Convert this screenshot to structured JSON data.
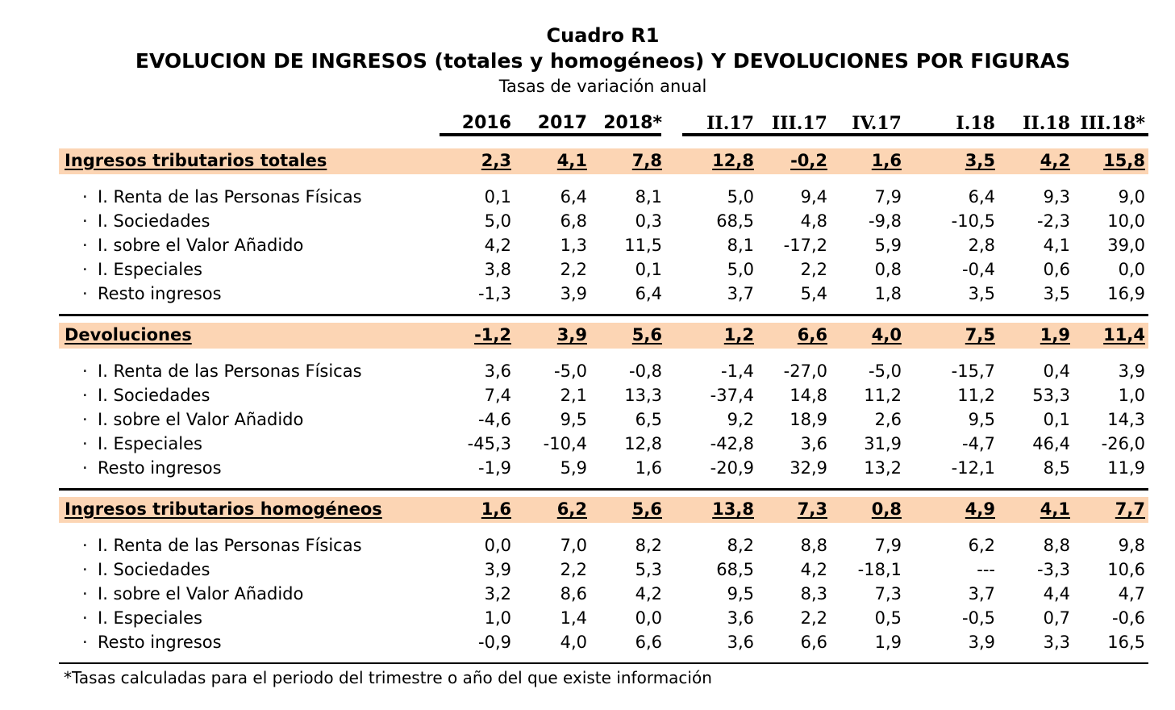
{
  "header": {
    "title": "Cuadro R1",
    "subtitle": "EVOLUCION DE INGRESOS (totales y homogéneos) Y DEVOLUCIONES POR FIGURAS",
    "caption": "Tasas de variación anual"
  },
  "columns": [
    "2016",
    "2017",
    "2018*",
    "II.17",
    "III.17",
    "IV.17",
    "I.18",
    "II.18",
    "III.18*"
  ],
  "colors": {
    "band": "#fcd5b4"
  },
  "sections": [
    {
      "label": "Ingresos tributarios totales",
      "values": [
        "2,3",
        "4,1",
        "7,8",
        "12,8",
        "-0,2",
        "1,6",
        "3,5",
        "4,2",
        "15,8"
      ],
      "rows": [
        {
          "label": "I. Renta de las Personas Físicas",
          "values": [
            "0,1",
            "6,4",
            "8,1",
            "5,0",
            "9,4",
            "7,9",
            "6,4",
            "9,3",
            "9,0"
          ]
        },
        {
          "label": "I. Sociedades",
          "values": [
            "5,0",
            "6,8",
            "0,3",
            "68,5",
            "4,8",
            "-9,8",
            "-10,5",
            "-2,3",
            "10,0"
          ]
        },
        {
          "label": "I. sobre el Valor Añadido",
          "values": [
            "4,2",
            "1,3",
            "11,5",
            "8,1",
            "-17,2",
            "5,9",
            "2,8",
            "4,1",
            "39,0"
          ]
        },
        {
          "label": "I. Especiales",
          "values": [
            "3,8",
            "2,2",
            "0,1",
            "5,0",
            "2,2",
            "0,8",
            "-0,4",
            "0,6",
            "0,0"
          ]
        },
        {
          "label": "Resto ingresos",
          "values": [
            "-1,3",
            "3,9",
            "6,4",
            "3,7",
            "5,4",
            "1,8",
            "3,5",
            "3,5",
            "16,9"
          ]
        }
      ]
    },
    {
      "label": "Devoluciones",
      "values": [
        "-1,2",
        "3,9",
        "5,6",
        "1,2",
        "6,6",
        "4,0",
        "7,5",
        "1,9",
        "11,4"
      ],
      "rows": [
        {
          "label": "I. Renta de las Personas Físicas",
          "values": [
            "3,6",
            "-5,0",
            "-0,8",
            "-1,4",
            "-27,0",
            "-5,0",
            "-15,7",
            "0,4",
            "3,9"
          ]
        },
        {
          "label": "I. Sociedades",
          "values": [
            "7,4",
            "2,1",
            "13,3",
            "-37,4",
            "14,8",
            "11,2",
            "11,2",
            "53,3",
            "1,0"
          ]
        },
        {
          "label": "I. sobre el Valor Añadido",
          "values": [
            "-4,6",
            "9,5",
            "6,5",
            "9,2",
            "18,9",
            "2,6",
            "9,5",
            "0,1",
            "14,3"
          ]
        },
        {
          "label": "I. Especiales",
          "values": [
            "-45,3",
            "-10,4",
            "12,8",
            "-42,8",
            "3,6",
            "31,9",
            "-4,7",
            "46,4",
            "-26,0"
          ]
        },
        {
          "label": "Resto ingresos",
          "values": [
            "-1,9",
            "5,9",
            "1,6",
            "-20,9",
            "32,9",
            "13,2",
            "-12,1",
            "8,5",
            "11,9"
          ]
        }
      ]
    },
    {
      "label": "Ingresos tributarios homogéneos",
      "values": [
        "1,6",
        "6,2",
        "5,6",
        "13,8",
        "7,3",
        "0,8",
        "4,9",
        "4,1",
        "7,7"
      ],
      "rows": [
        {
          "label": "I. Renta de las Personas Físicas",
          "values": [
            "0,0",
            "7,0",
            "8,2",
            "8,2",
            "8,8",
            "7,9",
            "6,2",
            "8,8",
            "9,8"
          ]
        },
        {
          "label": "I. Sociedades",
          "values": [
            "3,9",
            "2,2",
            "5,3",
            "68,5",
            "4,2",
            "-18,1",
            "---",
            "-3,3",
            "10,6"
          ]
        },
        {
          "label": "I. sobre el Valor Añadido",
          "values": [
            "3,2",
            "8,6",
            "4,2",
            "9,5",
            "8,3",
            "7,3",
            "3,7",
            "4,4",
            "4,7"
          ]
        },
        {
          "label": "I. Especiales",
          "values": [
            "1,0",
            "1,4",
            "0,0",
            "3,6",
            "2,2",
            "0,5",
            "-0,5",
            "0,7",
            "-0,6"
          ]
        },
        {
          "label": "Resto ingresos",
          "values": [
            "-0,9",
            "4,0",
            "6,6",
            "3,6",
            "6,6",
            "1,9",
            "3,9",
            "3,3",
            "16,5"
          ]
        }
      ]
    }
  ],
  "bullet": "·",
  "footnote": "*Tasas calculadas para el periodo del trimestre o año del que existe información"
}
